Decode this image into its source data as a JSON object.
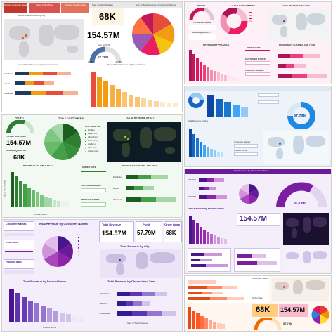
{
  "t1": {
    "customer_names": "Choose Customer Names",
    "order_date": "Select Order Date",
    "product_name": "Choose Product Name",
    "sum_order_quantity": "Sum of Order Quantity",
    "order_qty": "68K",
    "revenue": "154.57M",
    "sum_profit": "Sum of Profit",
    "gauge_value": "57.79M",
    "gauge_min": "0.00M",
    "gauge_max": "115.58M",
    "rev_by_customer": "Sum of Total Revenue by Customer Names",
    "rev_by_city": "Sum of Total Revenue by City",
    "rev_by_channel": "Sum of Total Revenue by Channel and Year",
    "rev_by_product": "Sum of Total Revenue by Product Name",
    "channels": [
      "Distributor",
      "Export",
      "Wholesale"
    ]
  },
  "t2": {
    "profit": "PROFIT",
    "top7": "TOP 7 CUSTOMERS",
    "rev_city": "TOTAL REVENUE BY CITY",
    "total_revenue": "TOTAL REVENUE",
    "order_quantity": "ORDER QUANTITY",
    "rev_product": "REVENUE BY PRODUCT",
    "rev_channel": "REVENUE BY CHANNEL AND YEAR",
    "order_date": "ORDER DATE",
    "customer_names": "CUSTOMER NAMES",
    "product_names": "PRODUCT NAMES"
  },
  "t3": {
    "gauge_value": "57.79M",
    "customer_names": "Customer Names",
    "product_name": "Product Name",
    "total_revenue": "Total Revenue by City",
    "revenue": "154.57M",
    "order_qty": "68K"
  },
  "t4": {
    "profit": "PROFIT",
    "top7": "TOP 7 CUSTOMERS",
    "rev_city": "TOTAL REVENUE BY CITY",
    "total_revenue": "TOTAL REVENUE",
    "revenue": "154.57M",
    "order_quantity": "ORDER QUANTITY",
    "order_qty": "68K",
    "rev_product": "REVENUE BY PRODUCT",
    "order_date": "ORDER DATE",
    "customer_names": "CUSTOMER NAMES",
    "product_names": "PRODUCT NAMES",
    "rev_channel": "REVENUE BY CHANNEL AND YEAR",
    "legend_title": "CUSTOMER NA...",
    "legend": [
      "Medline",
      "Pacific Ltd",
      "Aibox Corp",
      "Seisie Corp",
      "Apollo Ltd",
      "Ohio Corp",
      "Anthem Ltd"
    ],
    "channels": [
      "Distributor",
      "Export",
      "Wholesale"
    ],
    "y_axis": "Sum of Total Revenue",
    "x_axis": "Product Name"
  },
  "t5": {
    "title": "Total Revenue by Channel and Year",
    "revenue": "154.57M",
    "gauge_value": "57.79M",
    "rev_product": "Total Revenue by Product Name",
    "channels": [
      "Distributor",
      "Export",
      "Wholesale"
    ]
  },
  "t6": {
    "customer_names": "Customer Names",
    "order_date": "OrderDate",
    "product_name": "Product Name",
    "rev_by_customer": "Total Revenue by Customer Names",
    "total_revenue": "Total Revenue",
    "revenue": "154.57M",
    "profit": "Profit",
    "profit_value": "57.79M",
    "order_quant": "Order Quan",
    "order_qty": "68K",
    "rev_by_city": "Total Revenue by City",
    "rev_by_product": "Total Revenue by Product Name",
    "rev_by_channel": "Total Revenue by Channel and Year",
    "channels": [
      "Distributor",
      "Export",
      "Wholesale"
    ],
    "x_axis": "Product Name",
    "x_axis2": "Sum of Total Revenue"
  },
  "t7": {
    "customer_names": "Customer Names",
    "revenue": "154.57M",
    "order_qty": "68K",
    "profit_value": "57.79M",
    "order_date": "Order Date"
  }
}
